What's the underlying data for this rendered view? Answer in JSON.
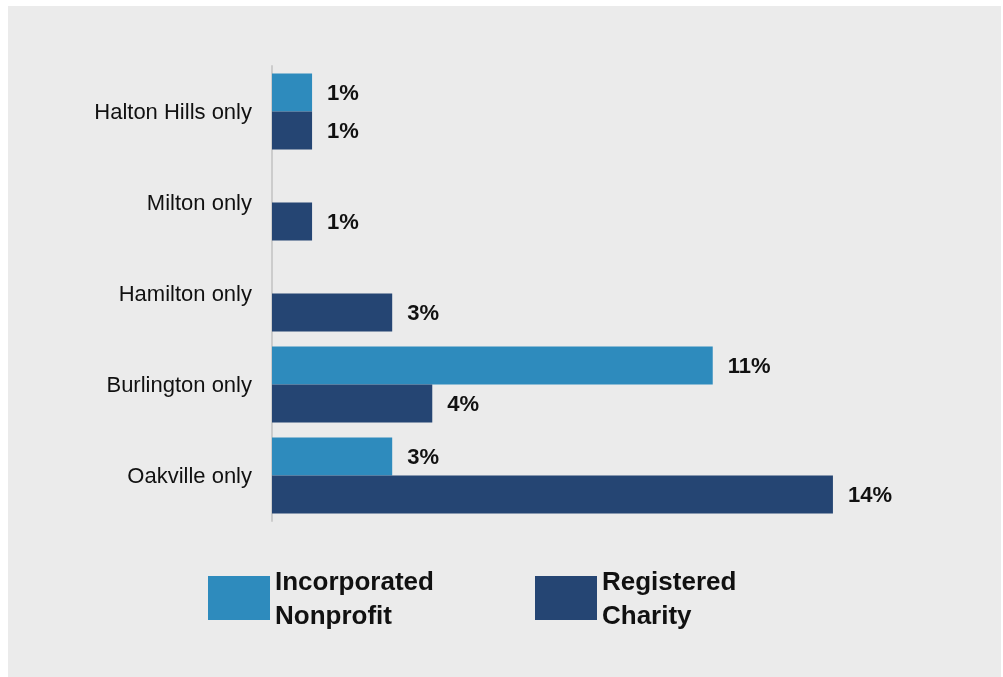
{
  "chart_data": {
    "type": "bar",
    "orientation": "horizontal",
    "categories": [
      "Halton Hills only",
      "Milton only",
      "Hamilton only",
      "Burlington only",
      "Oakville only"
    ],
    "series": [
      {
        "name": "Incorporated Nonprofit",
        "color": "#2e8bbd",
        "values": [
          1,
          null,
          null,
          11,
          3
        ],
        "value_labels": [
          "1%",
          null,
          null,
          "11%",
          "3%"
        ]
      },
      {
        "name": "Registered Charity",
        "color": "#254573",
        "values": [
          1,
          1,
          3,
          4,
          14
        ],
        "value_labels": [
          "1%",
          "1%",
          "3%",
          "4%",
          "14%"
        ]
      }
    ],
    "legend": "bottom",
    "tick_labels": "y"
  }
}
